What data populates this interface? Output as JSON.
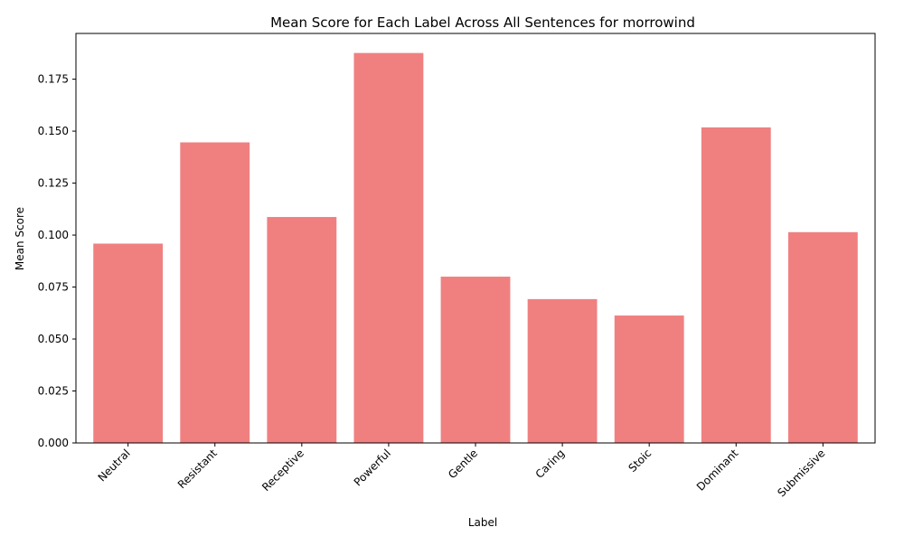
{
  "colors": {
    "bar": "#f08080",
    "axis": "#000000",
    "background": "#ffffff"
  },
  "chart_data": {
    "type": "bar",
    "title": "Mean Score for Each Label Across All Sentences for morrowind",
    "xlabel": "Label",
    "ylabel": "Mean Score",
    "categories": [
      "Neutral",
      "Resistant",
      "Receptive",
      "Powerful",
      "Gentle",
      "Caring",
      "Stoic",
      "Dominant",
      "Submissive"
    ],
    "values": [
      0.0959,
      0.1446,
      0.1087,
      0.1876,
      0.08,
      0.0692,
      0.0613,
      0.1518,
      0.1014
    ],
    "ylim": [
      0,
      0.197
    ],
    "yticks": [
      0.0,
      0.025,
      0.05,
      0.075,
      0.1,
      0.125,
      0.15,
      0.175
    ],
    "ytick_labels": [
      "0.000",
      "0.025",
      "0.050",
      "0.075",
      "0.100",
      "0.125",
      "0.150",
      "0.175"
    ],
    "grid": false,
    "legend": "none"
  }
}
